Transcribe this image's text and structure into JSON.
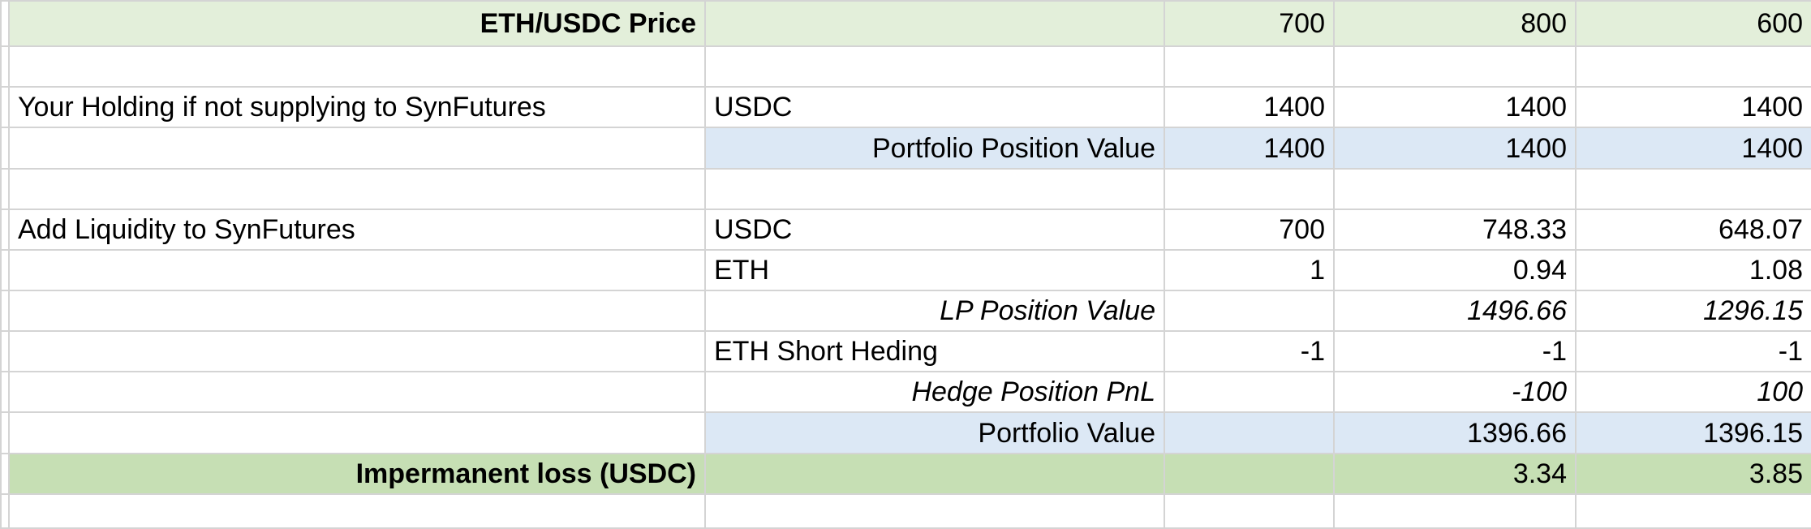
{
  "sheet": {
    "price_row": {
      "label": "ETH/USDC Price",
      "values": [
        "700",
        "800",
        "600"
      ]
    },
    "holding": {
      "section_label": "Your Holding if not supplying to SynFutures",
      "usdc": {
        "label": "USDC",
        "values": [
          "1400",
          "1400",
          "1400"
        ]
      },
      "portfolio": {
        "label": "Portfolio Position Value",
        "values": [
          "1400",
          "1400",
          "1400"
        ]
      }
    },
    "liquidity": {
      "section_label": "Add Liquidity to SynFutures",
      "usdc": {
        "label": "USDC",
        "values": [
          "700",
          "748.33",
          "648.07"
        ]
      },
      "eth": {
        "label": "ETH",
        "values": [
          "1",
          "0.94",
          "1.08"
        ]
      },
      "lp_value": {
        "label": "LP Position Value",
        "values": [
          "",
          "1496.66",
          "1296.15"
        ]
      },
      "short_hedge": {
        "label": "ETH Short Heding",
        "values": [
          "-1",
          "-1",
          "-1"
        ]
      },
      "hedge_pnl": {
        "label": "Hedge Position PnL",
        "values": [
          "",
          "-100",
          "100"
        ]
      },
      "portfolio_value": {
        "label": "Portfolio Value",
        "values": [
          "",
          "1396.66",
          "1396.15"
        ]
      }
    },
    "impermanent_loss": {
      "label": "Impermanent loss (USDC)",
      "values": [
        "",
        "3.34",
        "3.85"
      ]
    }
  }
}
